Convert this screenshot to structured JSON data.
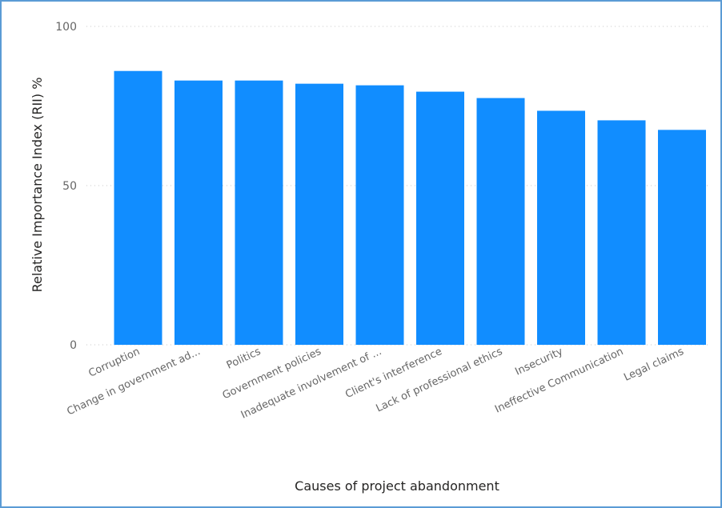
{
  "chart_data": {
    "type": "bar",
    "title": "",
    "xlabel": "Causes of project abandonment",
    "ylabel": "Relative Importance Index (RII) %",
    "ylim": [
      0,
      100
    ],
    "yticks": [
      0,
      50,
      100
    ],
    "grid": true,
    "bar_color": "#118dff",
    "categories": [
      "Corruption",
      "Change in government ad...",
      "Politics",
      "Government policies",
      "Inadequate involvement of ...",
      "Client's interference",
      "Lack of professional ethics",
      "Insecurity",
      "Ineffective Communication",
      "Legal claims"
    ],
    "values": [
      86,
      83,
      83,
      82,
      81.5,
      79.5,
      77.5,
      73.5,
      70.5,
      67.5
    ]
  }
}
